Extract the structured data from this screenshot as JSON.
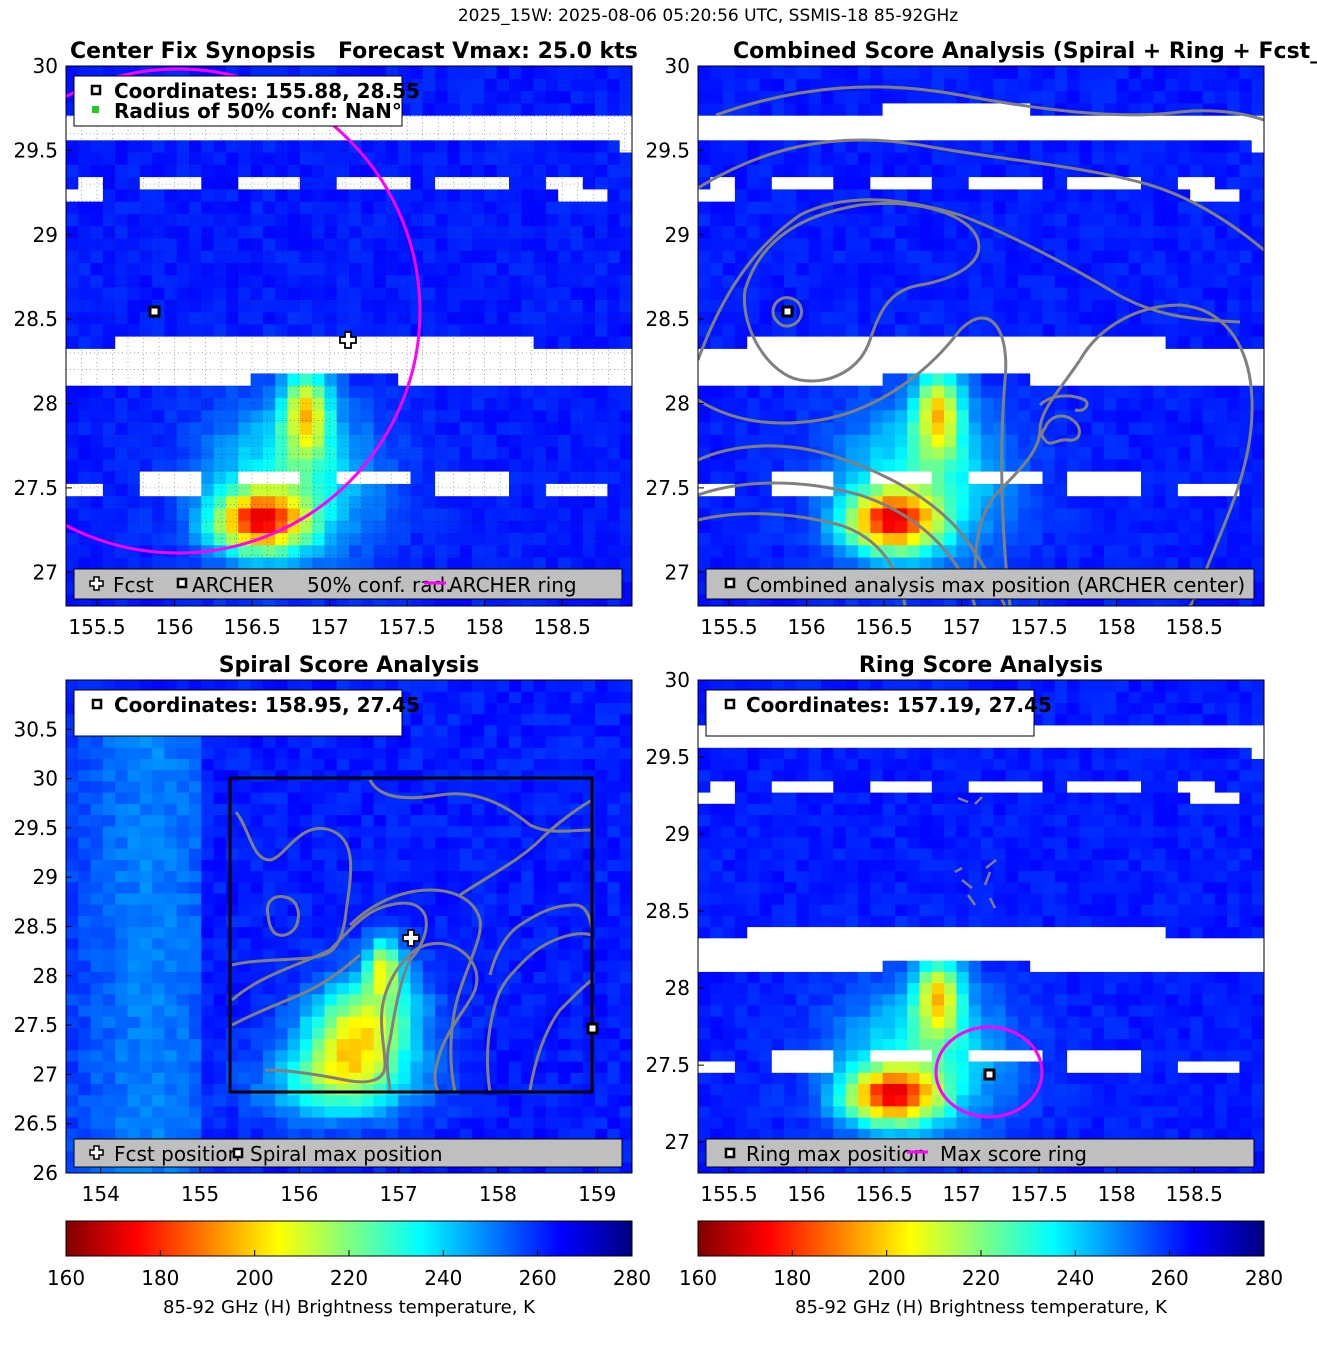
{
  "suptitle": "2025_15W: 2025-08-06 05:20:56 UTC, SSMIS-18 85-92GHz",
  "colors": {
    "axis": "#000000",
    "contour": "#808080",
    "ring": "#ff00ff",
    "legend_bg": "#bfbfbf",
    "gap": "#ffffff"
  },
  "colorbar": {
    "min": 160,
    "max": 280,
    "ticks": [
      160,
      180,
      200,
      220,
      240,
      260,
      280
    ],
    "label": "85-92 GHz (H) Brightness temperature, K",
    "colormap": "jet_reversed"
  },
  "panels": {
    "p1": {
      "title_left": "Center Fix Synopsis",
      "title_right": "Forecast Vmax: 25.0 kts",
      "info": [
        "Coordinates: 155.88, 28.55",
        "Radius of 50% conf: NaN°"
      ],
      "legend": [
        "Fcst",
        "ARCHER",
        "50% conf. rad.",
        "ARCHER ring"
      ],
      "icons": [
        "plus-icon",
        "square-marker-icon",
        "green-dot-icon",
        "magenta-line-icon"
      ]
    },
    "p2": {
      "title": "Combined Score Analysis (Spiral + Ring + Fcst_Pe",
      "legend": [
        "Combined analysis max position (ARCHER center)"
      ],
      "icons": [
        "square-marker-icon"
      ]
    },
    "p3": {
      "title": "Spiral Score Analysis",
      "info": [
        "Coordinates: 158.95, 27.45"
      ],
      "legend": [
        "Fcst position",
        "Spiral max position"
      ],
      "icons": [
        "plus-icon",
        "square-marker-icon"
      ]
    },
    "p4": {
      "title": "Ring Score Analysis",
      "info": [
        "Coordinates: 157.19, 27.45"
      ],
      "legend": [
        "Ring max position",
        "Max score ring"
      ],
      "icons": [
        "square-marker-icon",
        "magenta-line-icon"
      ]
    }
  },
  "chart_data": [
    {
      "type": "heatmap",
      "title": "Center Fix Synopsis",
      "xlim": [
        155.3,
        158.95
      ],
      "ylim": [
        26.8,
        30.0
      ],
      "xticks": [
        155.5,
        156,
        156.5,
        157,
        157.5,
        158,
        158.5
      ],
      "yticks": [
        27,
        27.5,
        28,
        28.5,
        29,
        29.5,
        30
      ],
      "background_tb_K": 262,
      "grid": "dotted black",
      "swath_gaps_lat": [
        [
          29.6,
          29.75
        ],
        [
          29.28,
          29.36
        ],
        [
          28.15,
          28.4
        ],
        [
          27.5,
          27.6
        ]
      ],
      "warm_cores": [
        {
          "lon": 156.55,
          "lat": 27.3,
          "tb_min_K": 190
        },
        {
          "lon": 156.85,
          "lat": 27.95,
          "tb_min_K": 210
        }
      ],
      "markers": {
        "archer_center": {
          "lon": 155.88,
          "lat": 28.55
        },
        "forecast": {
          "lon": 157.12,
          "lat": 28.4
        }
      },
      "rings": [
        {
          "lon": 156.15,
          "lat": 28.55,
          "radius_deg": 1.7
        }
      ]
    },
    {
      "type": "heatmap",
      "title": "Combined Score Analysis (Spiral + Ring + Fcst_Pe",
      "xlim": [
        155.3,
        158.95
      ],
      "ylim": [
        26.8,
        30.0
      ],
      "xticks": [
        155.5,
        156,
        156.5,
        157,
        157.5,
        158,
        158.5
      ],
      "yticks": [
        27,
        27.5,
        28,
        28.5,
        29,
        29.5,
        30
      ],
      "markers": {
        "combined_max": {
          "lon": 155.88,
          "lat": 28.55
        }
      },
      "contours": "combined score (gray)"
    },
    {
      "type": "heatmap",
      "title": "Spiral Score Analysis",
      "xlim": [
        153.65,
        159.35
      ],
      "ylim": [
        26.0,
        31.0
      ],
      "xticks": [
        154,
        155,
        156,
        157,
        158,
        159
      ],
      "yticks": [
        26,
        26.5,
        27,
        27.5,
        28,
        28.5,
        29,
        29.5,
        30,
        30.5
      ],
      "analysis_box": {
        "lon": [
          155.3,
          158.95
        ],
        "lat": [
          26.8,
          30.0
        ]
      },
      "markers": {
        "spiral_max": {
          "lon": 158.95,
          "lat": 27.45
        },
        "forecast": {
          "lon": 157.12,
          "lat": 28.4
        }
      }
    },
    {
      "type": "heatmap",
      "title": "Ring Score Analysis",
      "xlim": [
        155.3,
        158.95
      ],
      "ylim": [
        26.8,
        30.0
      ],
      "xticks": [
        155.5,
        156,
        156.5,
        157,
        157.5,
        158,
        158.5
      ],
      "yticks": [
        27,
        27.5,
        28,
        28.5,
        29,
        29.5,
        30
      ],
      "markers": {
        "ring_max": {
          "lon": 157.19,
          "lat": 27.45
        }
      },
      "rings": [
        {
          "lon": 157.19,
          "lat": 27.45,
          "radius_deg": 0.3
        }
      ]
    }
  ]
}
